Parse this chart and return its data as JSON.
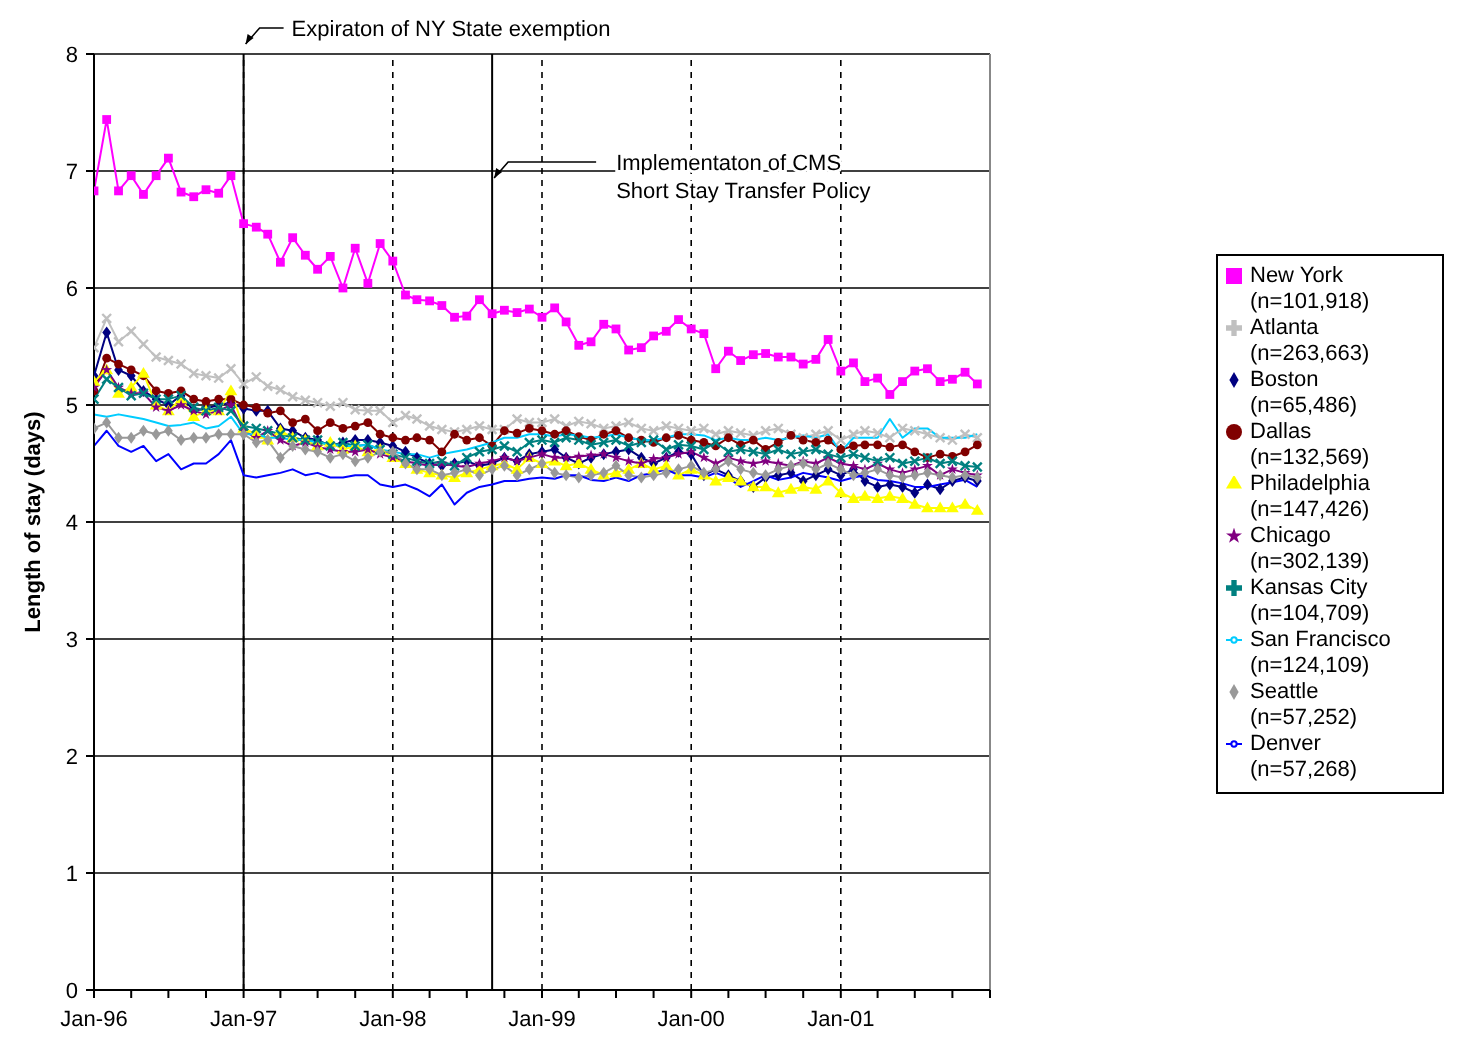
{
  "chart_data": {
    "type": "line",
    "ylabel": "Length of stay (days)",
    "x": [
      "1996-01",
      "1996-02",
      "1996-03",
      "1996-04",
      "1996-05",
      "1996-06",
      "1996-07",
      "1996-08",
      "1996-09",
      "1996-10",
      "1996-11",
      "1996-12",
      "1997-01",
      "1997-02",
      "1997-03",
      "1997-04",
      "1997-05",
      "1997-06",
      "1997-07",
      "1997-08",
      "1997-09",
      "1997-10",
      "1997-11",
      "1997-12",
      "1998-01",
      "1998-02",
      "1998-03",
      "1998-04",
      "1998-05",
      "1998-06",
      "1998-07",
      "1998-08",
      "1998-09",
      "1998-10",
      "1998-11",
      "1998-12",
      "1999-01",
      "1999-02",
      "1999-03",
      "1999-04",
      "1999-05",
      "1999-06",
      "1999-07",
      "1999-08",
      "1999-09",
      "1999-10",
      "1999-11",
      "1999-12",
      "2000-01",
      "2000-02",
      "2000-03",
      "2000-04",
      "2000-05",
      "2000-06",
      "2000-07",
      "2000-08",
      "2000-09",
      "2000-10",
      "2000-11",
      "2000-12",
      "2001-01",
      "2001-02",
      "2001-03",
      "2001-04",
      "2001-05",
      "2001-06",
      "2001-07",
      "2001-08",
      "2001-09",
      "2001-10",
      "2001-11",
      "2001-12"
    ],
    "xlim": [
      "1996-01",
      "2002-01"
    ],
    "xticks": [
      {
        "value": "1996-01",
        "label": "Jan-96"
      },
      {
        "value": "1996-04",
        "label": null
      },
      {
        "value": "1996-07",
        "label": null
      },
      {
        "value": "1996-10",
        "label": null
      },
      {
        "value": "1997-01",
        "label": "Jan-97"
      },
      {
        "value": "1997-04",
        "label": null
      },
      {
        "value": "1997-07",
        "label": null
      },
      {
        "value": "1997-10",
        "label": null
      },
      {
        "value": "1998-01",
        "label": "Jan-98"
      },
      {
        "value": "1998-04",
        "label": null
      },
      {
        "value": "1998-07",
        "label": null
      },
      {
        "value": "1998-10",
        "label": null
      },
      {
        "value": "1999-01",
        "label": "Jan-99"
      },
      {
        "value": "1999-04",
        "label": null
      },
      {
        "value": "1999-07",
        "label": null
      },
      {
        "value": "1999-10",
        "label": null
      },
      {
        "value": "2000-01",
        "label": "Jan-00"
      },
      {
        "value": "2000-04",
        "label": null
      },
      {
        "value": "2000-07",
        "label": null
      },
      {
        "value": "2000-10",
        "label": null
      },
      {
        "value": "2001-01",
        "label": "Jan-01"
      },
      {
        "value": "2001-04",
        "label": null
      },
      {
        "value": "2001-07",
        "label": null
      },
      {
        "value": "2001-10",
        "label": null
      },
      {
        "value": "2002-01",
        "label": null
      }
    ],
    "ylim": [
      0,
      8
    ],
    "yticks": [
      0,
      1,
      2,
      3,
      4,
      5,
      6,
      7,
      8
    ],
    "grid": true,
    "legend": "right",
    "ref_lines": [
      {
        "axis": "x",
        "value": "1997-01",
        "label": "Expiraton of NY State exemption"
      },
      {
        "axis": "x",
        "value": "1998-09",
        "label": "Implementaton of CMS Short Stay Transfer Policy"
      }
    ],
    "series": [
      {
        "name": "New York (n=101,918)",
        "color": "#ff00ff",
        "marker": "square",
        "values": [
          6.83,
          7.44,
          6.83,
          6.96,
          6.8,
          6.96,
          7.11,
          6.82,
          6.78,
          6.84,
          6.81,
          6.96,
          6.55,
          6.52,
          6.46,
          6.22,
          6.43,
          6.28,
          6.16,
          6.27,
          6.0,
          6.34,
          6.04,
          6.38,
          6.23,
          5.94,
          5.9,
          5.89,
          5.85,
          5.75,
          5.76,
          5.9,
          5.78,
          5.81,
          5.79,
          5.82,
          5.75,
          5.83,
          5.71,
          5.51,
          5.54,
          5.69,
          5.65,
          5.47,
          5.49,
          5.59,
          5.63,
          5.73,
          5.65,
          5.61,
          5.31,
          5.46,
          5.38,
          5.43,
          5.44,
          5.41,
          5.41,
          5.35,
          5.39,
          5.56,
          5.29,
          5.36,
          5.2,
          5.23,
          5.09,
          5.2,
          5.29,
          5.31,
          5.2,
          5.22,
          5.28,
          5.18
        ]
      },
      {
        "name": "Atlanta (n=263,663)",
        "color": "#c0c0c0",
        "marker": "cross",
        "values": [
          5.49,
          5.74,
          5.54,
          5.63,
          5.52,
          5.41,
          5.38,
          5.35,
          5.27,
          5.25,
          5.23,
          5.31,
          5.18,
          5.24,
          5.16,
          5.13,
          5.07,
          5.04,
          5.02,
          4.99,
          5.02,
          4.96,
          4.95,
          4.95,
          4.85,
          4.91,
          4.88,
          4.82,
          4.79,
          4.77,
          4.79,
          4.82,
          4.79,
          4.79,
          4.88,
          4.85,
          4.85,
          4.88,
          4.82,
          4.86,
          4.84,
          4.8,
          4.82,
          4.85,
          4.8,
          4.78,
          4.82,
          4.8,
          4.78,
          4.8,
          4.75,
          4.78,
          4.76,
          4.74,
          4.78,
          4.8,
          4.75,
          4.72,
          4.75,
          4.78,
          4.7,
          4.75,
          4.78,
          4.76,
          4.72,
          4.8,
          4.78,
          4.75,
          4.72,
          4.7,
          4.75,
          4.72
        ]
      },
      {
        "name": "Boston (n=65,486)",
        "color": "#000080",
        "marker": "diamond",
        "values": [
          5.25,
          5.62,
          5.3,
          5.25,
          5.12,
          5.05,
          5.0,
          5.08,
          4.95,
          4.97,
          5.0,
          5.02,
          4.97,
          4.95,
          4.95,
          4.8,
          4.78,
          4.72,
          4.7,
          4.65,
          4.68,
          4.7,
          4.7,
          4.68,
          4.65,
          4.6,
          4.55,
          4.5,
          4.48,
          4.5,
          4.52,
          4.48,
          4.5,
          4.55,
          4.52,
          4.58,
          4.6,
          4.62,
          4.55,
          4.5,
          4.55,
          4.58,
          4.6,
          4.62,
          4.55,
          4.5,
          4.55,
          4.6,
          4.58,
          4.4,
          4.45,
          4.4,
          4.35,
          4.3,
          4.38,
          4.4,
          4.42,
          4.35,
          4.4,
          4.45,
          4.4,
          4.45,
          4.35,
          4.3,
          4.32,
          4.3,
          4.25,
          4.32,
          4.28,
          4.35,
          4.38,
          4.35
        ]
      },
      {
        "name": "Dallas (n=132,569)",
        "color": "#800000",
        "marker": "circle",
        "values": [
          5.12,
          5.4,
          5.35,
          5.3,
          5.25,
          5.12,
          5.1,
          5.12,
          5.05,
          5.03,
          5.05,
          5.05,
          5.0,
          4.98,
          4.93,
          4.95,
          4.85,
          4.88,
          4.78,
          4.85,
          4.8,
          4.82,
          4.85,
          4.75,
          4.72,
          4.7,
          4.72,
          4.7,
          4.6,
          4.75,
          4.7,
          4.72,
          4.65,
          4.78,
          4.76,
          4.8,
          4.78,
          4.75,
          4.78,
          4.73,
          4.7,
          4.75,
          4.78,
          4.72,
          4.7,
          4.68,
          4.72,
          4.74,
          4.7,
          4.68,
          4.65,
          4.72,
          4.66,
          4.7,
          4.62,
          4.68,
          4.74,
          4.7,
          4.68,
          4.7,
          4.62,
          4.65,
          4.66,
          4.66,
          4.64,
          4.66,
          4.6,
          4.55,
          4.58,
          4.56,
          4.6,
          4.66
        ]
      },
      {
        "name": "Philadelphia (n=147,426)",
        "color": "#ffff00",
        "marker": "triangle",
        "values": [
          5.2,
          5.3,
          5.1,
          5.15,
          5.27,
          5.0,
          4.95,
          5.05,
          4.9,
          4.95,
          4.95,
          5.12,
          4.8,
          4.75,
          4.7,
          4.78,
          4.72,
          4.7,
          4.65,
          4.68,
          4.62,
          4.65,
          4.6,
          4.62,
          4.55,
          4.5,
          4.45,
          4.42,
          4.4,
          4.38,
          4.42,
          4.45,
          4.48,
          4.5,
          4.45,
          4.55,
          4.5,
          4.52,
          4.48,
          4.5,
          4.45,
          4.4,
          4.42,
          4.45,
          4.5,
          4.45,
          4.48,
          4.4,
          4.45,
          4.4,
          4.35,
          4.38,
          4.35,
          4.3,
          4.3,
          4.25,
          4.28,
          4.3,
          4.28,
          4.35,
          4.25,
          4.2,
          4.22,
          4.2,
          4.22,
          4.2,
          4.15,
          4.12,
          4.12,
          4.12,
          4.15,
          4.1
        ]
      },
      {
        "name": "Chicago (n=302,139)",
        "color": "#800080",
        "marker": "star",
        "values": [
          5.15,
          5.3,
          5.15,
          5.1,
          5.1,
          4.98,
          4.95,
          5.0,
          4.95,
          4.92,
          4.95,
          5.0,
          4.78,
          4.72,
          4.78,
          4.7,
          4.65,
          4.68,
          4.64,
          4.62,
          4.6,
          4.6,
          4.62,
          4.58,
          4.55,
          4.52,
          4.5,
          4.48,
          4.5,
          4.48,
          4.47,
          4.5,
          4.52,
          4.55,
          4.52,
          4.55,
          4.58,
          4.55,
          4.55,
          4.56,
          4.57,
          4.58,
          4.55,
          4.52,
          4.5,
          4.54,
          4.55,
          4.58,
          4.6,
          4.55,
          4.5,
          4.55,
          4.52,
          4.5,
          4.52,
          4.5,
          4.48,
          4.52,
          4.5,
          4.55,
          4.5,
          4.48,
          4.45,
          4.5,
          4.45,
          4.42,
          4.45,
          4.48,
          4.4,
          4.45,
          4.42,
          4.4
        ]
      },
      {
        "name": "Kansas City (n=104,709)",
        "color": "#008080",
        "marker": "cross",
        "values": [
          5.05,
          5.22,
          5.15,
          5.08,
          5.1,
          5.05,
          5.05,
          5.08,
          4.98,
          4.95,
          4.98,
          4.95,
          4.82,
          4.8,
          4.78,
          4.75,
          4.72,
          4.7,
          4.7,
          4.65,
          4.68,
          4.65,
          4.66,
          4.62,
          4.58,
          4.55,
          4.52,
          4.5,
          4.52,
          4.48,
          4.55,
          4.6,
          4.62,
          4.65,
          4.6,
          4.68,
          4.7,
          4.68,
          4.72,
          4.7,
          4.66,
          4.68,
          4.7,
          4.65,
          4.68,
          4.7,
          4.62,
          4.66,
          4.65,
          4.62,
          4.68,
          4.6,
          4.62,
          4.6,
          4.58,
          4.62,
          4.58,
          4.6,
          4.62,
          4.58,
          4.55,
          4.58,
          4.55,
          4.52,
          4.55,
          4.5,
          4.52,
          4.55,
          4.5,
          4.52,
          4.48,
          4.47
        ]
      },
      {
        "name": "San Francisco (n=124,109)",
        "color": "#00ccff",
        "marker": "none",
        "values": [
          4.92,
          4.9,
          4.92,
          4.9,
          4.88,
          4.85,
          4.82,
          4.83,
          4.85,
          4.8,
          4.82,
          4.9,
          4.75,
          4.75,
          4.72,
          4.72,
          4.7,
          4.7,
          4.68,
          4.66,
          4.65,
          4.65,
          4.66,
          4.62,
          4.6,
          4.58,
          4.58,
          4.55,
          4.58,
          4.6,
          4.62,
          4.65,
          4.68,
          4.72,
          4.72,
          4.75,
          4.75,
          4.73,
          4.75,
          4.74,
          4.72,
          4.73,
          4.75,
          4.72,
          4.7,
          4.7,
          4.72,
          4.75,
          4.75,
          4.74,
          4.7,
          4.72,
          4.7,
          4.7,
          4.72,
          4.7,
          4.72,
          4.74,
          4.72,
          4.75,
          4.6,
          4.72,
          4.72,
          4.72,
          4.88,
          4.72,
          4.8,
          4.8,
          4.72,
          4.72,
          4.72,
          4.75
        ]
      },
      {
        "name": "Seattle (n=57,252)",
        "color": "#999999",
        "marker": "diamond",
        "values": [
          4.8,
          4.85,
          4.72,
          4.72,
          4.78,
          4.75,
          4.78,
          4.7,
          4.72,
          4.72,
          4.75,
          4.75,
          4.75,
          4.68,
          4.7,
          4.55,
          4.65,
          4.62,
          4.6,
          4.55,
          4.58,
          4.52,
          4.55,
          4.6,
          4.6,
          4.5,
          4.45,
          4.45,
          4.4,
          4.42,
          4.45,
          4.4,
          4.45,
          4.48,
          4.4,
          4.45,
          4.5,
          4.42,
          4.4,
          4.38,
          4.4,
          4.42,
          4.48,
          4.4,
          4.38,
          4.4,
          4.42,
          4.45,
          4.48,
          4.42,
          4.45,
          4.52,
          4.45,
          4.42,
          4.4,
          4.45,
          4.48,
          4.5,
          4.45,
          4.5,
          4.45,
          4.4,
          4.42,
          4.45,
          4.4,
          4.38,
          4.4,
          4.42,
          4.4,
          4.38,
          4.4,
          4.38
        ]
      },
      {
        "name": "Denver (n=57,268)",
        "color": "#0000ff",
        "marker": "none",
        "values": [
          4.65,
          4.78,
          4.65,
          4.6,
          4.65,
          4.52,
          4.58,
          4.45,
          4.5,
          4.5,
          4.58,
          4.7,
          4.4,
          4.38,
          4.4,
          4.42,
          4.45,
          4.4,
          4.42,
          4.38,
          4.38,
          4.4,
          4.4,
          4.32,
          4.3,
          4.32,
          4.28,
          4.22,
          4.32,
          4.15,
          4.25,
          4.3,
          4.32,
          4.35,
          4.35,
          4.37,
          4.38,
          4.37,
          4.4,
          4.4,
          4.36,
          4.35,
          4.38,
          4.35,
          4.4,
          4.42,
          4.45,
          4.4,
          4.4,
          4.38,
          4.42,
          4.38,
          4.3,
          4.35,
          4.4,
          4.36,
          4.38,
          4.42,
          4.4,
          4.38,
          4.35,
          4.38,
          4.4,
          4.36,
          4.35,
          4.33,
          4.3,
          4.3,
          4.32,
          4.34,
          4.36,
          4.3
        ]
      }
    ]
  }
}
